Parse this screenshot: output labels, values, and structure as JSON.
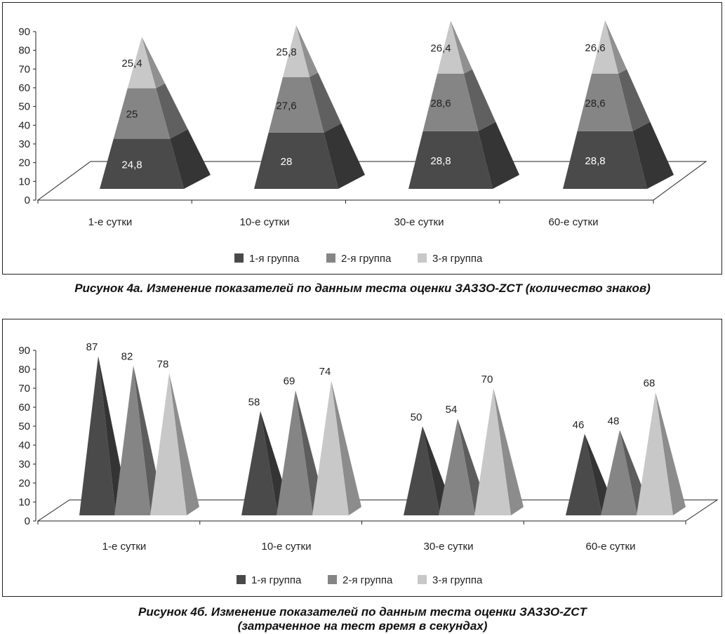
{
  "chart_data": [
    {
      "type": "bar",
      "style": "3d-stacked-pyramid",
      "title": "Рисунок 4а. Изменение показателей по данным теста оценки ЗАЗЗО-ZCT (количество знаков)",
      "categories": [
        "1-е сутки",
        "10-е сутки",
        "30-е сутки",
        "60-е сутки"
      ],
      "ylim": [
        0,
        90
      ],
      "yticks": [
        "0",
        "10",
        "20",
        "30",
        "40",
        "50",
        "60",
        "70",
        "80",
        "90"
      ],
      "series": [
        {
          "name": "1-я группа",
          "values": [
            24.8,
            28,
            28.8,
            28.8
          ],
          "labels": [
            "24,8",
            "28",
            "28,8",
            "28,8"
          ],
          "color": "#4a4a4a"
        },
        {
          "name": "2-я группа",
          "values": [
            25,
            27.6,
            28.6,
            28.6
          ],
          "labels": [
            "25",
            "27,6",
            "28,6",
            "28,6"
          ],
          "color": "#858585"
        },
        {
          "name": "3-я группа",
          "values": [
            25.4,
            25.8,
            26.4,
            26.6
          ],
          "labels": [
            "25,4",
            "25,8",
            "26,4",
            "26,6"
          ],
          "color": "#c8c8c8"
        }
      ],
      "legend": "bottom",
      "grid": false
    },
    {
      "type": "bar",
      "style": "3d-pyramid",
      "title": "Рисунок 4б. Изменение показателей по данным теста оценки ЗАЗЗО-ZCT",
      "subtitle": "(затраченное на тест время в секундах)",
      "categories": [
        "1-е сутки",
        "10-е сутки",
        "30-е сутки",
        "60-е сутки"
      ],
      "ylim": [
        0,
        90
      ],
      "yticks": [
        "0",
        "10",
        "20",
        "30",
        "40",
        "50",
        "60",
        "70",
        "80",
        "90"
      ],
      "series": [
        {
          "name": "1-я группа",
          "values": [
            87,
            58,
            50,
            46
          ],
          "labels": [
            "87",
            "58",
            "50",
            "46"
          ],
          "color": "#4a4a4a"
        },
        {
          "name": "2-я группа",
          "values": [
            82,
            69,
            54,
            48
          ],
          "labels": [
            "82",
            "69",
            "54",
            "48"
          ],
          "color": "#858585"
        },
        {
          "name": "3-я группа",
          "values": [
            78,
            74,
            70,
            68
          ],
          "labels": [
            "78",
            "74",
            "70",
            "68"
          ],
          "color": "#c8c8c8"
        }
      ],
      "legend": "bottom",
      "grid": false
    }
  ]
}
